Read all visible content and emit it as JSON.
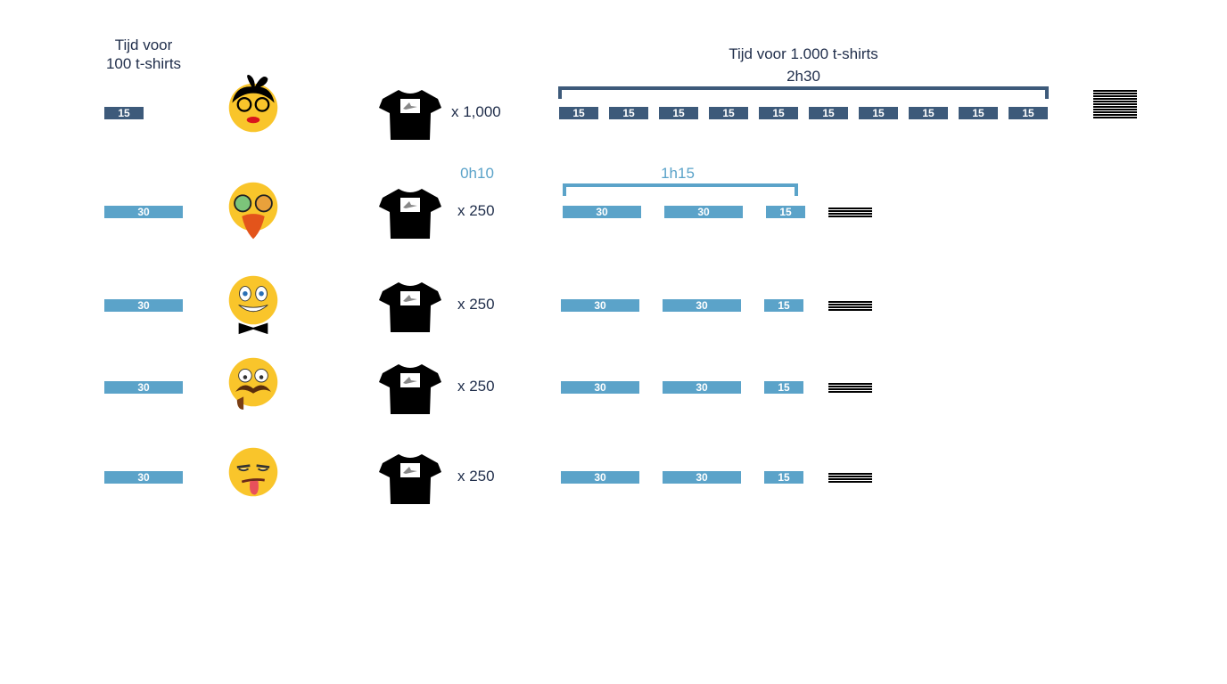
{
  "header_left": {
    "line1": "Tijd voor",
    "line2": "100 t-shirts"
  },
  "header_right": {
    "title": "Tijd voor 1.000 t-shirts",
    "total": "2h30"
  },
  "row2_extra": {
    "setup_time": "0h10",
    "bracket_total": "1h15"
  },
  "colors": {
    "dark": "#3d5a7a",
    "light": "#5ba3c9",
    "text": "#1f2d4a"
  },
  "rows": [
    {
      "persona": "woman-with-bow-and-glasses-emoji",
      "unit_time": "15",
      "quantity": "x 1,000",
      "blocks": [
        "15",
        "15",
        "15",
        "15",
        "15",
        "15",
        "15",
        "15",
        "15",
        "15"
      ],
      "tone": "dark"
    },
    {
      "persona": "bearded-hipster-glasses-emoji",
      "unit_time": "30",
      "quantity": "x 250",
      "blocks": [
        "30",
        "30",
        "15"
      ],
      "tone": "light"
    },
    {
      "persona": "grinning-bowtie-emoji",
      "unit_time": "30",
      "quantity": "x 250",
      "blocks": [
        "30",
        "30",
        "15"
      ],
      "tone": "light"
    },
    {
      "persona": "mustache-pipe-emoji",
      "unit_time": "30",
      "quantity": "x 250",
      "blocks": [
        "30",
        "30",
        "15"
      ],
      "tone": "light"
    },
    {
      "persona": "tongue-out-emoji",
      "unit_time": "30",
      "quantity": "x 250",
      "blocks": [
        "30",
        "30",
        "15"
      ],
      "tone": "light"
    }
  ]
}
